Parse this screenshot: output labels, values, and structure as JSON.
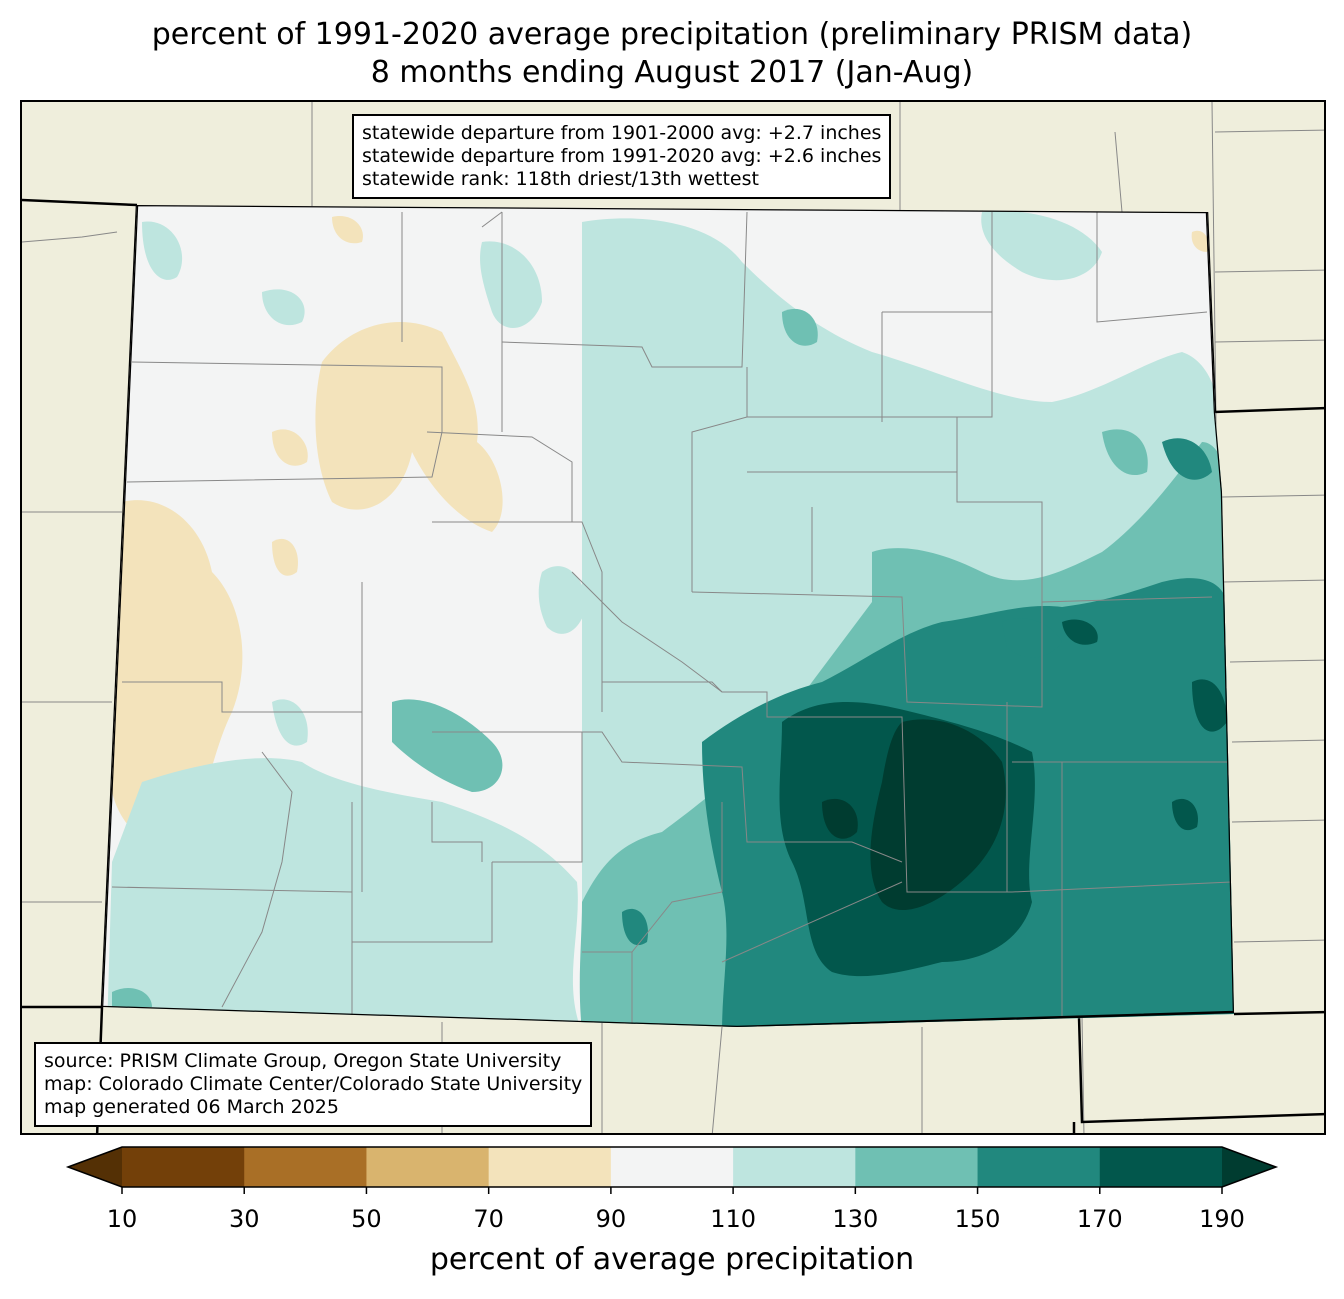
{
  "title": {
    "line1": "percent of 1991-2020 average precipitation (preliminary PRISM data)",
    "line2": "8 months ending August 2017 (Jan-Aug)"
  },
  "stats": {
    "line1": "statewide departure from 1901-2000 avg: +2.7 inches",
    "line2": "statewide departure from 1991-2020 avg: +2.6 inches",
    "line3": "statewide rank: 118th driest/13th wettest"
  },
  "credits": {
    "line1": "source: PRISM Climate Group, Oregon State University",
    "line2": "map: Colorado Climate Center/Colorado State University",
    "line3": "map generated 06 March 2025"
  },
  "colorbar": {
    "label": "percent of average precipitation",
    "ticks": [
      "10",
      "30",
      "50",
      "70",
      "90",
      "110",
      "130",
      "150",
      "170",
      "190"
    ],
    "colors": [
      "#543005",
      "#734009",
      "#a96f26",
      "#d9b46e",
      "#f3e3bb",
      "#f3f4f4",
      "#bee5df",
      "#6fc0b3",
      "#21887e",
      "#02574c",
      "#003c30"
    ]
  },
  "map_colors": {
    "land_outside": "#efeedc",
    "state_border": "#000000",
    "county_lines": "#888888"
  }
}
